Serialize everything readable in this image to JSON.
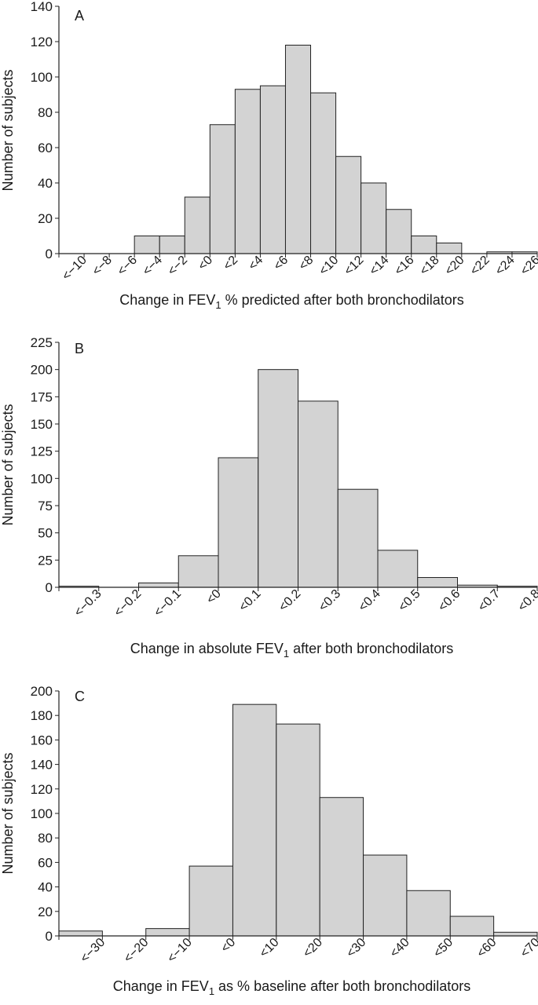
{
  "chart_data": [
    {
      "panel": "A",
      "type": "bar",
      "ylabel": "Number of subjects",
      "xlabel_parts": [
        "Change in FEV",
        "1",
        " % predicted after both bronchodilators"
      ],
      "ylim": [
        0,
        140
      ],
      "yticks": [
        0,
        20,
        40,
        60,
        80,
        100,
        120,
        140
      ],
      "categories": [
        "<−10",
        "<−8",
        "<−6",
        "<−4",
        "<−2",
        "<0",
        "<2",
        "<4",
        "<6",
        "<8",
        "<10",
        "<12",
        "<14",
        "<16",
        "<18",
        "<20",
        "<22",
        "<24",
        "<26"
      ],
      "values": [
        0,
        0,
        0,
        10,
        10,
        32,
        73,
        93,
        95,
        118,
        91,
        55,
        40,
        25,
        10,
        6,
        0,
        1,
        1
      ],
      "bar_color": "#d3d3d3"
    },
    {
      "panel": "B",
      "type": "bar",
      "ylabel": "Number of subjects",
      "xlabel_parts": [
        "Change in absolute FEV",
        "1",
        " after both bronchodilators"
      ],
      "ylim": [
        0,
        225
      ],
      "yticks": [
        0,
        25,
        50,
        75,
        100,
        125,
        150,
        175,
        200,
        225
      ],
      "categories": [
        "<−0.3",
        "<−0.2",
        "<−0.1",
        "<0",
        "<0.1",
        "<0.2",
        "<0.3",
        "<0.4",
        "<0.5",
        "<0.6",
        "<0.7",
        "<0.8"
      ],
      "values": [
        1,
        0,
        4,
        29,
        119,
        200,
        171,
        90,
        34,
        9,
        2,
        1
      ],
      "bar_color": "#d3d3d3"
    },
    {
      "panel": "C",
      "type": "bar",
      "ylabel": "Number of subjects",
      "xlabel_parts": [
        "Change in FEV",
        "1",
        " as % baseline after both bronchodilators"
      ],
      "ylim": [
        0,
        200
      ],
      "yticks": [
        0,
        20,
        40,
        60,
        80,
        100,
        120,
        140,
        160,
        180,
        200
      ],
      "categories": [
        "<−30",
        "<−20",
        "<−10",
        "<0",
        "<10",
        "<20",
        "<30",
        "<40",
        "<50",
        "<60",
        "<70"
      ],
      "values": [
        4,
        0,
        6,
        57,
        189,
        173,
        113,
        66,
        37,
        16,
        3
      ],
      "bar_color": "#d3d3d3"
    }
  ]
}
